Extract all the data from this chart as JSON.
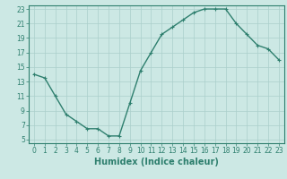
{
  "x": [
    0,
    1,
    2,
    3,
    4,
    5,
    6,
    7,
    8,
    9,
    10,
    11,
    12,
    13,
    14,
    15,
    16,
    17,
    18,
    19,
    20,
    21,
    22,
    23
  ],
  "y": [
    14,
    13.5,
    11,
    8.5,
    7.5,
    6.5,
    6.5,
    5.5,
    5.5,
    10,
    14.5,
    17,
    19.5,
    20.5,
    21.5,
    22.5,
    23,
    23,
    23,
    21,
    19.5,
    18,
    17.5,
    16
  ],
  "line_color": "#2e7f6e",
  "marker": "+",
  "marker_color": "#2e7f6e",
  "bg_color": "#cce8e4",
  "grid_color": "#aacfcb",
  "xlabel": "Humidex (Indice chaleur)",
  "ylabel": "",
  "xlim": [
    -0.5,
    23.5
  ],
  "ylim": [
    4.5,
    23.5
  ],
  "yticks": [
    5,
    7,
    9,
    11,
    13,
    15,
    17,
    19,
    21,
    23
  ],
  "xticks": [
    0,
    1,
    2,
    3,
    4,
    5,
    6,
    7,
    8,
    9,
    10,
    11,
    12,
    13,
    14,
    15,
    16,
    17,
    18,
    19,
    20,
    21,
    22,
    23
  ],
  "tick_label_fontsize": 5.5,
  "xlabel_fontsize": 7,
  "line_width": 1.0,
  "marker_size": 3.5
}
